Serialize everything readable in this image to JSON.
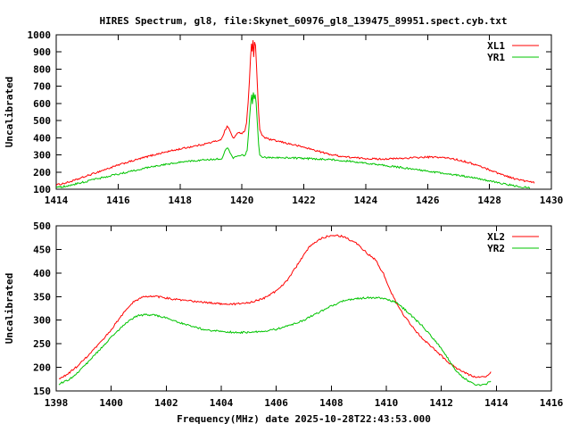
{
  "title": "HIRES Spectrum, gl8, file:Skynet_60976_gl8_139475_89951.spect.cyb.txt",
  "colors": {
    "background": "#ffffff",
    "axis": "#000000",
    "text": "#000000",
    "xl_series": "#ff0000",
    "yr_series": "#00c400"
  },
  "chart_data": [
    {
      "type": "line",
      "title": "",
      "ylabel": "Uncalibrated",
      "xlabel": "",
      "xlim": [
        1414,
        1430
      ],
      "ylim": [
        100,
        1000
      ],
      "xticks": [
        1414,
        1416,
        1418,
        1420,
        1422,
        1424,
        1426,
        1428,
        1430
      ],
      "yticks": [
        100,
        200,
        300,
        400,
        500,
        600,
        700,
        800,
        900,
        1000
      ],
      "grid": false,
      "legend_position": "top-right",
      "series": [
        {
          "name": "XL1",
          "color": "#ff0000",
          "noise": 5,
          "points": [
            [
              1414.0,
              125
            ],
            [
              1414.3,
              136
            ],
            [
              1414.6,
              152
            ],
            [
              1415.0,
              178
            ],
            [
              1415.4,
              204
            ],
            [
              1415.8,
              228
            ],
            [
              1416.2,
              252
            ],
            [
              1416.6,
              272
            ],
            [
              1417.0,
              293
            ],
            [
              1417.4,
              311
            ],
            [
              1417.8,
              327
            ],
            [
              1418.2,
              342
            ],
            [
              1418.6,
              356
            ],
            [
              1419.0,
              372
            ],
            [
              1419.2,
              382
            ],
            [
              1419.35,
              394
            ],
            [
              1419.45,
              440
            ],
            [
              1419.52,
              468
            ],
            [
              1419.58,
              452
            ],
            [
              1419.65,
              425
            ],
            [
              1419.72,
              398
            ],
            [
              1419.78,
              408
            ],
            [
              1419.85,
              422
            ],
            [
              1419.92,
              430
            ],
            [
              1420.0,
              428
            ],
            [
              1420.05,
              432
            ],
            [
              1420.1,
              445
            ],
            [
              1420.15,
              490
            ],
            [
              1420.2,
              600
            ],
            [
              1420.24,
              730
            ],
            [
              1420.28,
              870
            ],
            [
              1420.31,
              950
            ],
            [
              1420.33,
              905
            ],
            [
              1420.36,
              965
            ],
            [
              1420.38,
              870
            ],
            [
              1420.41,
              955
            ],
            [
              1420.44,
              940
            ],
            [
              1420.47,
              830
            ],
            [
              1420.5,
              700
            ],
            [
              1420.54,
              540
            ],
            [
              1420.58,
              450
            ],
            [
              1420.65,
              415
            ],
            [
              1420.75,
              400
            ],
            [
              1420.9,
              390
            ],
            [
              1421.2,
              378
            ],
            [
              1421.6,
              362
            ],
            [
              1422.0,
              345
            ],
            [
              1422.4,
              325
            ],
            [
              1422.8,
              305
            ],
            [
              1423.2,
              292
            ],
            [
              1423.6,
              284
            ],
            [
              1424.0,
              279
            ],
            [
              1424.4,
              276
            ],
            [
              1424.8,
              277
            ],
            [
              1425.2,
              280
            ],
            [
              1425.6,
              284
            ],
            [
              1426.0,
              287
            ],
            [
              1426.4,
              286
            ],
            [
              1426.8,
              278
            ],
            [
              1427.2,
              262
            ],
            [
              1427.6,
              240
            ],
            [
              1428.0,
              213
            ],
            [
              1428.4,
              186
            ],
            [
              1428.8,
              162
            ],
            [
              1429.1,
              150
            ],
            [
              1429.45,
              138
            ]
          ]
        },
        {
          "name": "YR1",
          "color": "#00c400",
          "noise": 5,
          "points": [
            [
              1414.0,
              108
            ],
            [
              1414.4,
              121
            ],
            [
              1414.8,
              138
            ],
            [
              1415.2,
              155
            ],
            [
              1415.6,
              172
            ],
            [
              1416.0,
              188
            ],
            [
              1416.4,
              204
            ],
            [
              1416.8,
              220
            ],
            [
              1417.2,
              234
            ],
            [
              1417.6,
              247
            ],
            [
              1418.0,
              258
            ],
            [
              1418.4,
              266
            ],
            [
              1418.8,
              271
            ],
            [
              1419.2,
              275
            ],
            [
              1419.35,
              280
            ],
            [
              1419.45,
              320
            ],
            [
              1419.52,
              342
            ],
            [
              1419.58,
              330
            ],
            [
              1419.65,
              305
            ],
            [
              1419.72,
              282
            ],
            [
              1419.8,
              290
            ],
            [
              1419.9,
              298
            ],
            [
              1420.0,
              300
            ],
            [
              1420.08,
              296
            ],
            [
              1420.12,
              305
            ],
            [
              1420.17,
              330
            ],
            [
              1420.21,
              420
            ],
            [
              1420.25,
              520
            ],
            [
              1420.29,
              610
            ],
            [
              1420.32,
              655
            ],
            [
              1420.34,
              600
            ],
            [
              1420.37,
              660
            ],
            [
              1420.4,
              630
            ],
            [
              1420.43,
              655
            ],
            [
              1420.46,
              600
            ],
            [
              1420.5,
              480
            ],
            [
              1420.54,
              360
            ],
            [
              1420.58,
              300
            ],
            [
              1420.65,
              288
            ],
            [
              1420.8,
              285
            ],
            [
              1421.2,
              284
            ],
            [
              1421.6,
              282
            ],
            [
              1422.0,
              280
            ],
            [
              1422.4,
              277
            ],
            [
              1422.8,
              273
            ],
            [
              1423.2,
              268
            ],
            [
              1423.6,
              261
            ],
            [
              1424.0,
              252
            ],
            [
              1424.4,
              243
            ],
            [
              1424.8,
              234
            ],
            [
              1425.2,
              225
            ],
            [
              1425.6,
              215
            ],
            [
              1426.0,
              205
            ],
            [
              1426.4,
              196
            ],
            [
              1426.8,
              186
            ],
            [
              1427.2,
              175
            ],
            [
              1427.6,
              162
            ],
            [
              1428.0,
              148
            ],
            [
              1428.4,
              134
            ],
            [
              1428.8,
              120
            ],
            [
              1429.1,
              112
            ],
            [
              1429.3,
              108
            ]
          ]
        }
      ]
    },
    {
      "type": "line",
      "title": "",
      "ylabel": "Uncalibrated",
      "xlabel": "Frequency(MHz) date 2025-10-28T22:43:53.000",
      "xlim": [
        1398,
        1416
      ],
      "ylim": [
        150,
        500
      ],
      "xticks": [
        1398,
        1400,
        1402,
        1404,
        1406,
        1408,
        1410,
        1412,
        1414,
        1416
      ],
      "yticks": [
        150,
        200,
        250,
        300,
        350,
        400,
        450,
        500
      ],
      "grid": false,
      "legend_position": "top-right",
      "series": [
        {
          "name": "XL2",
          "color": "#ff0000",
          "noise": 2,
          "points": [
            [
              1398.1,
              175
            ],
            [
              1398.4,
              185
            ],
            [
              1398.8,
              204
            ],
            [
              1399.2,
              227
            ],
            [
              1399.6,
              252
            ],
            [
              1400.0,
              280
            ],
            [
              1400.4,
              312
            ],
            [
              1400.8,
              338
            ],
            [
              1401.1,
              348
            ],
            [
              1401.4,
              351
            ],
            [
              1401.8,
              349
            ],
            [
              1402.2,
              345
            ],
            [
              1402.6,
              342
            ],
            [
              1403.0,
              340
            ],
            [
              1403.5,
              337
            ],
            [
              1404.0,
              335
            ],
            [
              1404.5,
              334
            ],
            [
              1405.0,
              337
            ],
            [
              1405.5,
              345
            ],
            [
              1406.0,
              362
            ],
            [
              1406.4,
              385
            ],
            [
              1406.8,
              420
            ],
            [
              1407.2,
              455
            ],
            [
              1407.6,
              472
            ],
            [
              1407.9,
              479
            ],
            [
              1408.2,
              480
            ],
            [
              1408.5,
              476
            ],
            [
              1408.9,
              463
            ],
            [
              1409.3,
              442
            ],
            [
              1409.6,
              428
            ],
            [
              1409.9,
              398
            ],
            [
              1410.1,
              368
            ],
            [
              1410.25,
              350
            ],
            [
              1410.4,
              333
            ],
            [
              1410.7,
              305
            ],
            [
              1411.0,
              282
            ],
            [
              1411.3,
              262
            ],
            [
              1411.6,
              246
            ],
            [
              1411.9,
              230
            ],
            [
              1412.2,
              213
            ],
            [
              1412.5,
              200
            ],
            [
              1412.8,
              190
            ],
            [
              1413.1,
              182
            ],
            [
              1413.35,
              179
            ],
            [
              1413.6,
              181
            ],
            [
              1413.8,
              189
            ]
          ]
        },
        {
          "name": "YR2",
          "color": "#00c400",
          "noise": 2,
          "points": [
            [
              1398.1,
              165
            ],
            [
              1398.5,
              175
            ],
            [
              1398.9,
              196
            ],
            [
              1399.3,
              220
            ],
            [
              1399.7,
              245
            ],
            [
              1400.1,
              270
            ],
            [
              1400.5,
              292
            ],
            [
              1400.9,
              308
            ],
            [
              1401.2,
              312
            ],
            [
              1401.5,
              311
            ],
            [
              1401.9,
              306
            ],
            [
              1402.3,
              299
            ],
            [
              1402.7,
              291
            ],
            [
              1403.1,
              284
            ],
            [
              1403.5,
              279
            ],
            [
              1404.0,
              276
            ],
            [
              1404.5,
              274
            ],
            [
              1405.0,
              274
            ],
            [
              1405.5,
              276
            ],
            [
              1406.0,
              281
            ],
            [
              1406.5,
              289
            ],
            [
              1407.0,
              300
            ],
            [
              1407.5,
              315
            ],
            [
              1408.0,
              330
            ],
            [
              1408.4,
              340
            ],
            [
              1408.8,
              345
            ],
            [
              1409.2,
              347
            ],
            [
              1409.6,
              348
            ],
            [
              1410.0,
              345
            ],
            [
              1410.4,
              336
            ],
            [
              1410.7,
              321
            ],
            [
              1411.0,
              305
            ],
            [
              1411.3,
              288
            ],
            [
              1411.6,
              268
            ],
            [
              1411.9,
              248
            ],
            [
              1412.2,
              222
            ],
            [
              1412.5,
              196
            ],
            [
              1412.8,
              178
            ],
            [
              1413.1,
              167
            ],
            [
              1413.35,
              162
            ],
            [
              1413.6,
              163
            ],
            [
              1413.8,
              172
            ]
          ]
        }
      ]
    }
  ]
}
